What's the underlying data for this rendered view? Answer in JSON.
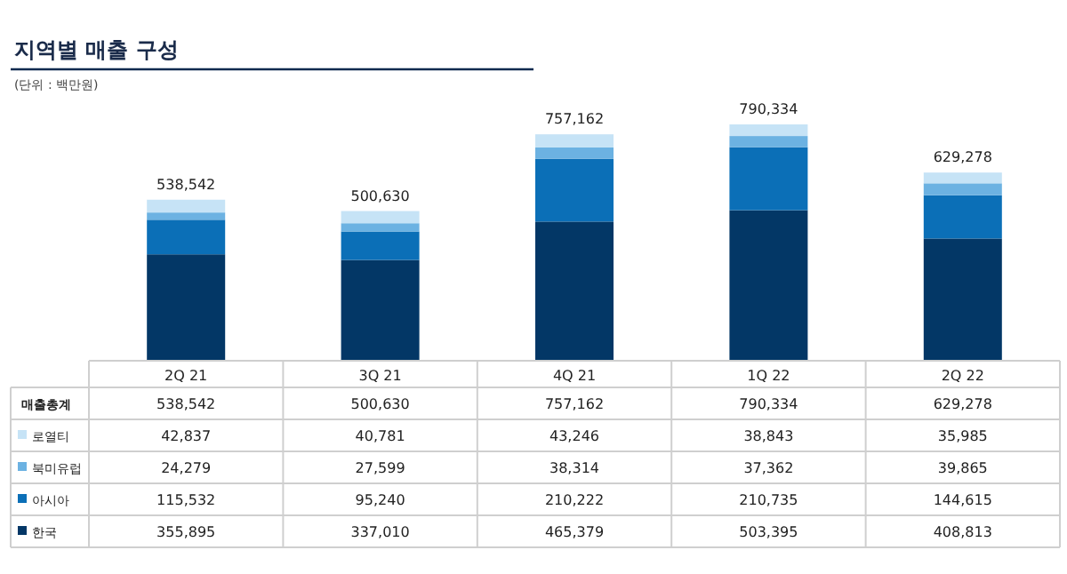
{
  "chart_data": {
    "type": "bar",
    "title": "지역별 매출 구성",
    "subtitle": "(단위 : 백만원)",
    "stacked": true,
    "legend": "bottom left",
    "categories": [
      "2Q 21",
      "3Q 21",
      "4Q 21",
      "1Q 22",
      "2Q 22"
    ],
    "series": [
      {
        "name": "한국",
        "color": "#033766",
        "values": [
          355895,
          337010,
          465379,
          503395,
          408813
        ],
        "value_labels": [
          "355,895",
          "337,010",
          "465,379",
          "503,395",
          "408,813"
        ]
      },
      {
        "name": "아시아",
        "color": "#0b6fb7",
        "values": [
          115532,
          95240,
          210222,
          210735,
          144615
        ],
        "value_labels": [
          "115,532",
          "95,240",
          "210,222",
          "210,735",
          "144,615"
        ]
      },
      {
        "name": "북미유럽",
        "color": "#6cb2e2",
        "values": [
          24279,
          27599,
          38314,
          37362,
          39865
        ],
        "value_labels": [
          "24,279",
          "27,599",
          "38,314",
          "37,362",
          "39,865"
        ]
      },
      {
        "name": "로열티",
        "color": "#c6e3f6",
        "values": [
          42837,
          40781,
          43246,
          38843,
          35985
        ],
        "value_labels": [
          "42,837",
          "40,781",
          "43,246",
          "38,843",
          "35,985"
        ]
      }
    ],
    "annotations": [
      "매출총계"
    ],
    "totals": [
      "538,542",
      "500,630",
      "757,162",
      "790,334",
      "629,278"
    ]
  }
}
